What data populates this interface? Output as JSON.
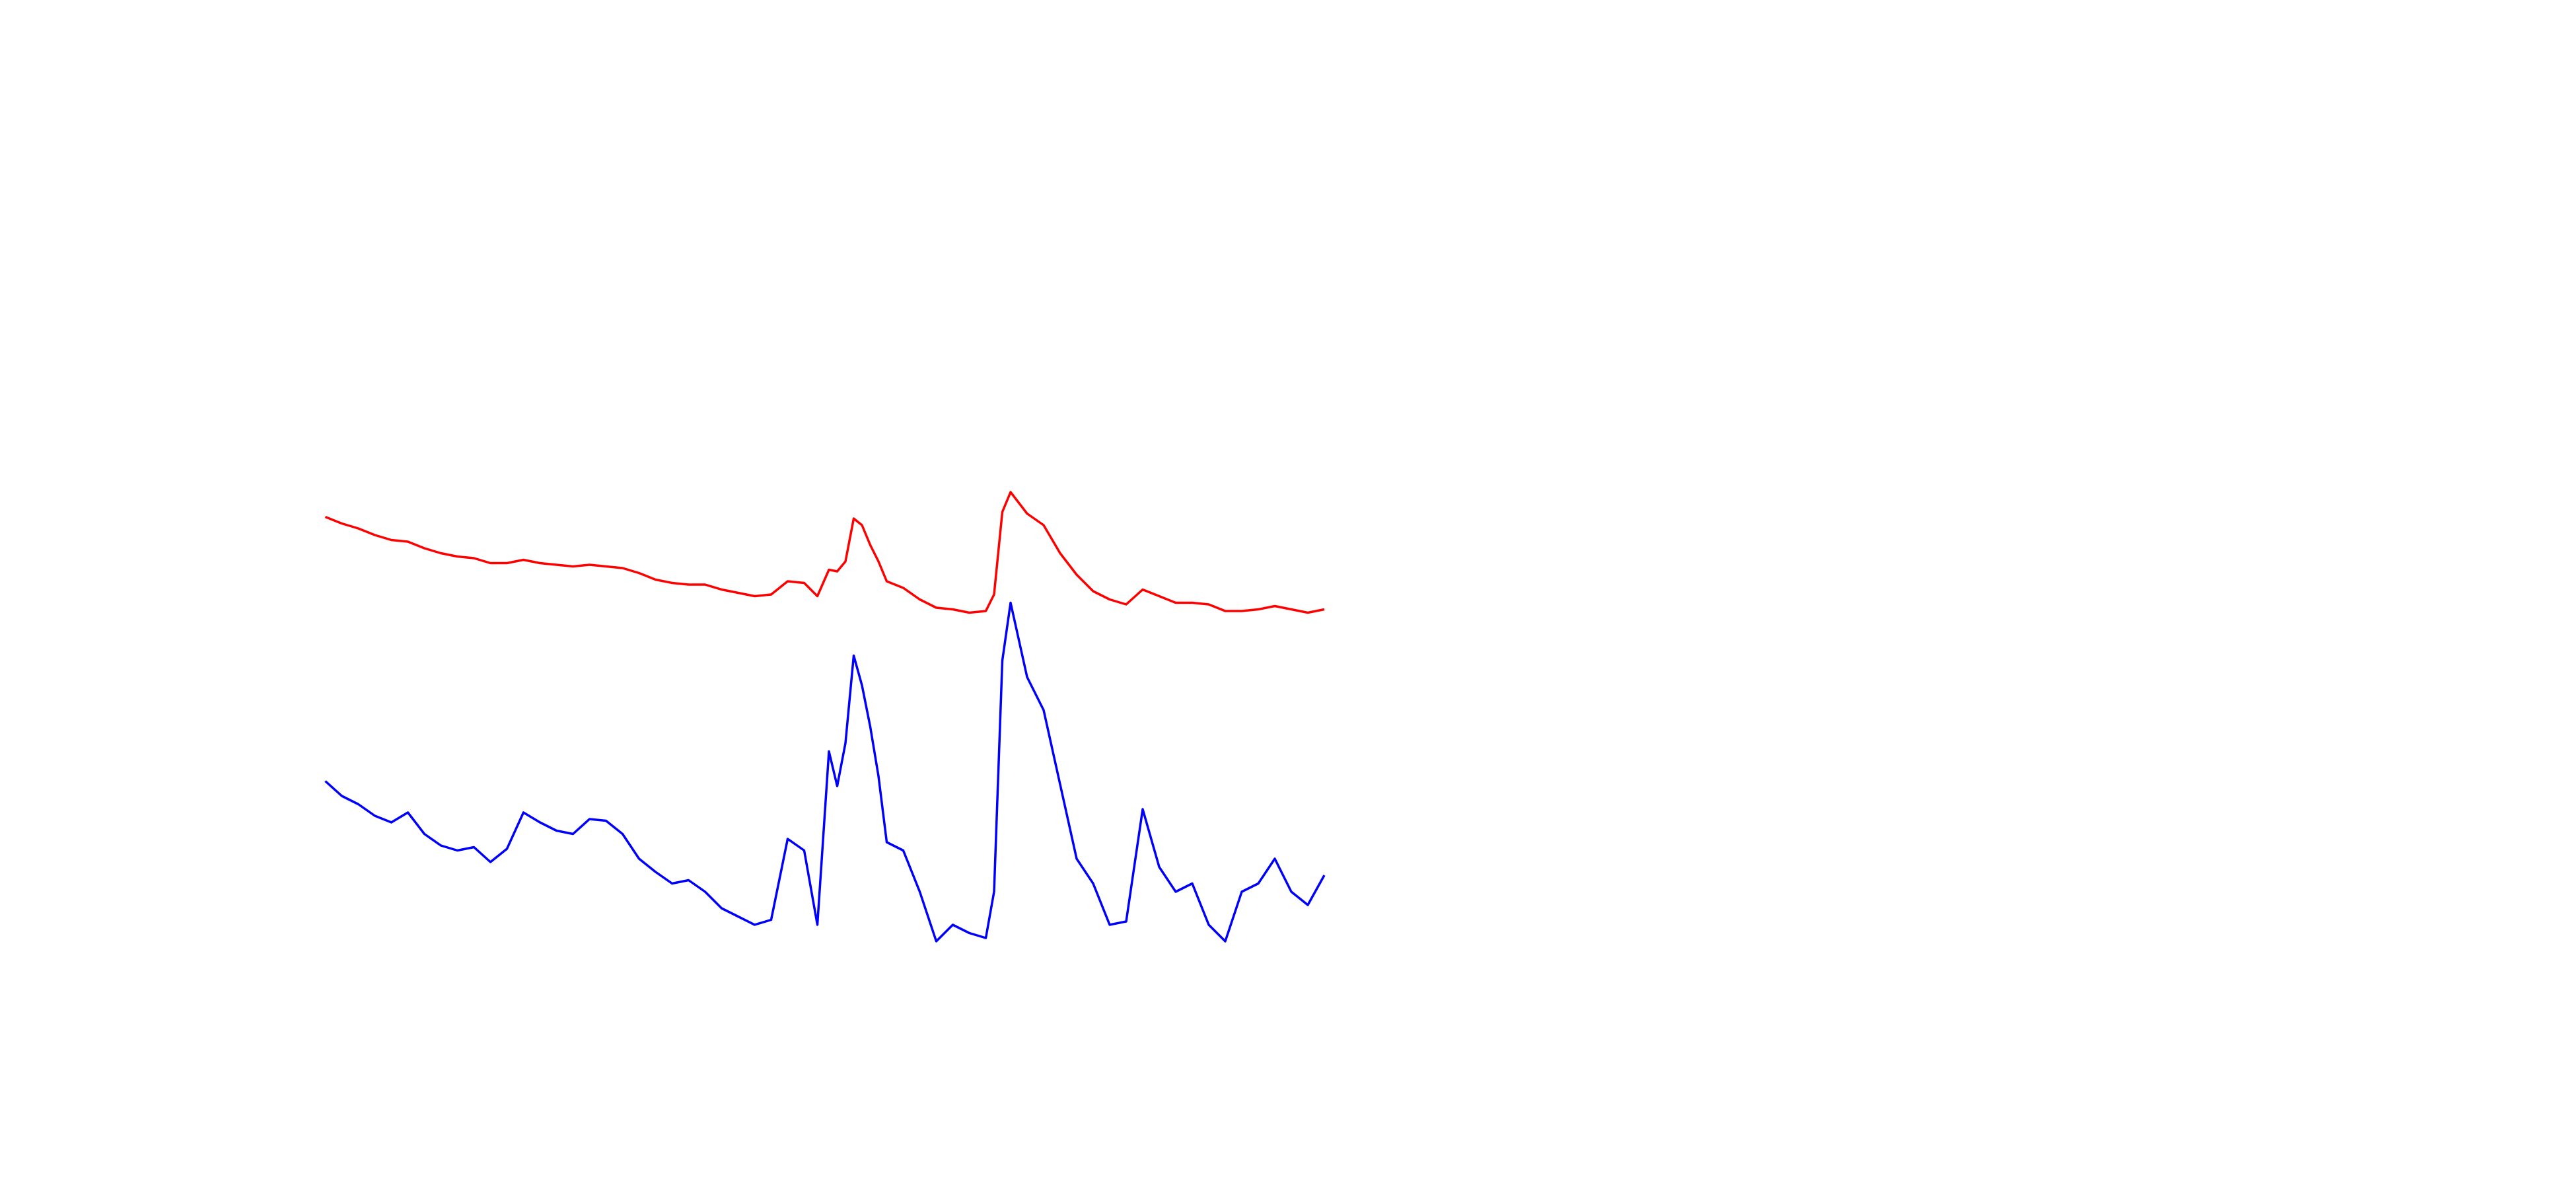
{
  "chart_data": {
    "type": "line",
    "x": [
      0,
      10,
      20,
      30,
      40,
      50,
      60,
      70,
      80,
      90,
      100,
      110,
      120,
      130,
      140,
      150,
      160,
      170,
      180,
      190,
      200,
      210,
      220,
      230,
      240,
      250,
      260,
      270,
      280,
      290,
      298,
      305,
      310,
      315,
      320,
      325,
      330,
      335,
      340,
      350,
      360,
      370,
      380,
      390,
      400,
      405,
      410,
      415,
      425,
      435,
      445,
      455,
      465,
      475,
      485,
      495,
      505,
      515,
      525,
      535,
      545,
      555,
      565,
      575,
      585,
      595,
      605
    ],
    "series": [
      {
        "color": "#ff0000",
        "values": [
          407,
          403,
          400,
          396,
          393,
          392,
          388,
          385,
          383,
          382,
          379,
          379,
          381,
          379,
          378,
          377,
          378,
          377,
          376,
          373,
          369,
          367,
          366,
          366,
          363,
          361,
          359,
          360,
          368,
          367,
          359,
          375,
          374,
          380,
          406,
          402,
          390,
          380,
          368,
          364,
          357,
          352,
          351,
          349,
          350,
          360,
          410,
          422,
          409,
          402,
          385,
          372,
          362,
          357,
          354,
          363,
          359,
          355,
          355,
          354,
          350,
          350,
          351,
          353,
          351,
          349,
          351
        ]
      },
      {
        "color": "#0000ff",
        "values": [
          247,
          238,
          233,
          226,
          222,
          228,
          215,
          208,
          205,
          207,
          198,
          206,
          228,
          222,
          217,
          215,
          224,
          223,
          215,
          200,
          192,
          185,
          187,
          180,
          170,
          165,
          160,
          163,
          212,
          205,
          160,
          265,
          244,
          270,
          323,
          305,
          280,
          250,
          210,
          205,
          180,
          150,
          160,
          155,
          152,
          180,
          320,
          355,
          310,
          290,
          245,
          200,
          185,
          160,
          162,
          230,
          195,
          180,
          185,
          160,
          150,
          180,
          185,
          200,
          180,
          172,
          190
        ]
      }
    ],
    "xlim": [
      -197,
      1363
    ],
    "ylim": [
      0,
      720
    ]
  }
}
